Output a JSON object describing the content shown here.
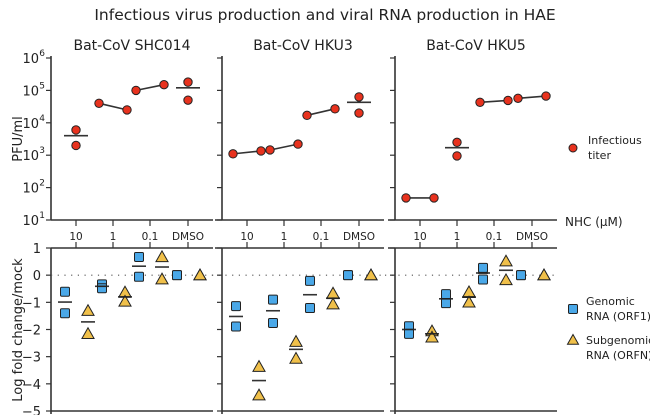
{
  "chart_data": [
    {
      "type": "scatter",
      "title": "Infectious virus production and viral RNA production in HAE",
      "panel_row": "top",
      "ylabel": "PFU/ml",
      "xlabel": "NHC (µM)",
      "yscale": "log",
      "ylim_exp": [
        1,
        6
      ],
      "ytick_labels": [
        "10",
        "10",
        "10",
        "10",
        "10",
        "10"
      ],
      "ytick_exponents": [
        "1",
        "2",
        "3",
        "4",
        "5",
        "6"
      ],
      "categories": [
        "10",
        "1",
        "0.1",
        "DMSO"
      ],
      "legend": [
        {
          "label_line1": "Infectious",
          "label_line2": "titer",
          "marker": "circle",
          "color": "#e8321e"
        }
      ],
      "legend_placement": "right",
      "panels": [
        {
          "title": "Bat-CoV SHC014",
          "series": [
            {
              "name": "Infectious titer",
              "points": [
                [
                  6000,
                  2000
                ],
                [
                  40000,
                  25000
                ],
                [
                  100000,
                  150000
                ],
                [
                  180000,
                  50000
                ]
              ],
              "means": [
                4000,
                33000,
                122000,
                120000
              ]
            }
          ]
        },
        {
          "title": "Bat-CoV HKU3",
          "series": [
            {
              "name": "Infectious titer",
              "points": [
                [
                  1100,
                  1350
                ],
                [
                  1450,
                  2200
                ],
                [
                  17000,
                  27000
                ],
                [
                  63000,
                  20000
                ]
              ],
              "means": [
                1220,
                1800,
                22000,
                43000
              ]
            }
          ]
        },
        {
          "title": "Bat-CoV HKU5",
          "series": [
            {
              "name": "Infectious titer",
              "points": [
                [
                  48,
                  48
                ],
                [
                  2500,
                  950
                ],
                [
                  43000,
                  49000
                ],
                [
                  57000,
                  67000
                ]
              ],
              "means": [
                48,
                1700,
                46000,
                62000
              ]
            }
          ]
        }
      ]
    },
    {
      "type": "scatter",
      "panel_row": "bottom",
      "ylabel": "Log fold change/mock",
      "ylim": [
        -5,
        1
      ],
      "yticks": [
        "1",
        "0",
        "−1",
        "−2",
        "−3",
        "−4",
        "−5"
      ],
      "categories": [
        "10",
        "1",
        "0.1",
        "DMSO"
      ],
      "reference_line": 0,
      "legend": [
        {
          "label_line1": "Genomic",
          "label_line2": "RNA (ORF1)",
          "marker": "square",
          "color": "#4aa8e8"
        },
        {
          "label_line1": "Subgenomic",
          "label_line2": "RNA (ORFN)",
          "marker": "triangle",
          "color": "#f0c04a"
        }
      ],
      "legend_placement": "right",
      "panels": [
        {
          "title": "Bat-CoV SHC014",
          "series": [
            {
              "name": "Genomic RNA (ORF1)",
              "points": [
                [
                  -0.61,
                  -1.4
                ],
                [
                  -0.34,
                  -0.48
                ],
                [
                  0.67,
                  -0.06
                ],
                [
                  0,
                  0
                ]
              ],
              "means": [
                -0.99,
                -0.41,
                0.33,
                0
              ]
            },
            {
              "name": "Subgenomic RNA (ORFN)",
              "points": [
                [
                  -1.31,
                  -2.16
                ],
                [
                  -0.63,
                  -0.97
                ],
                [
                  0.67,
                  -0.15
                ],
                [
                  0,
                  0
                ]
              ],
              "means": [
                -1.72,
                -0.8,
                0.3,
                0
              ]
            }
          ]
        },
        {
          "title": "Bat-CoV HKU3",
          "series": [
            {
              "name": "Genomic RNA (ORF1)",
              "points": [
                [
                  -1.14,
                  -1.89
                ],
                [
                  -0.9,
                  -1.76
                ],
                [
                  -0.21,
                  -1.21
                ],
                [
                  0,
                  0
                ]
              ],
              "means": [
                -1.52,
                -1.31,
                -0.72,
                0
              ]
            },
            {
              "name": "Subgenomic RNA (ORFN)",
              "points": [
                [
                  -3.37,
                  -4.42
                ],
                [
                  -2.45,
                  -3.07
                ],
                [
                  -0.67,
                  -1.07
                ],
                [
                  0,
                  0
                ]
              ],
              "means": [
                -3.88,
                -2.73,
                -0.85,
                0
              ]
            }
          ]
        },
        {
          "title": "Bat-CoV HKU5",
          "series": [
            {
              "name": "Genomic RNA (ORF1)",
              "points": [
                [
                  -1.88,
                  -2.16
                ],
                [
                  -0.7,
                  -1.03
                ],
                [
                  0.27,
                  -0.16
                ],
                [
                  0,
                  0
                ]
              ],
              "means": [
                -2.0,
                -0.87,
                0.08,
                0
              ]
            },
            {
              "name": "Subgenomic RNA (ORFN)",
              "points": [
                [
                  -2.06,
                  -2.29
                ],
                [
                  -0.62,
                  -1.0
                ],
                [
                  0.51,
                  -0.18
                ],
                [
                  0,
                  0
                ]
              ],
              "means": [
                -2.16,
                -0.81,
                0.18,
                0
              ]
            }
          ]
        }
      ]
    }
  ]
}
